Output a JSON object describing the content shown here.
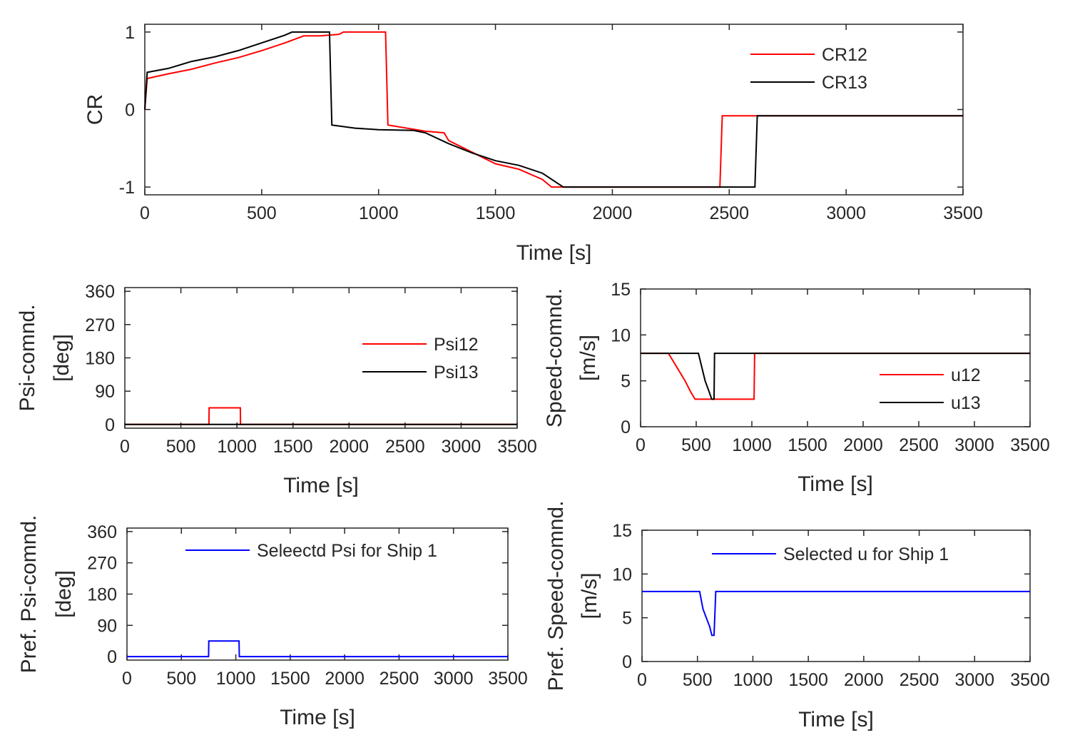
{
  "chart_data": [
    {
      "id": "cr",
      "type": "line",
      "title": "",
      "xlabel": "Time [s]",
      "ylabel": [
        "CR"
      ],
      "xlim": [
        0,
        3500
      ],
      "ylim": [
        -1.1,
        1.1
      ],
      "xticks": [
        0,
        500,
        1000,
        1500,
        2000,
        2500,
        3000,
        3500
      ],
      "yticks": [
        -1,
        0,
        1
      ],
      "series": [
        {
          "name": "CR12",
          "color": "#ff0000",
          "points": [
            [
              0,
              0
            ],
            [
              10,
              0.4
            ],
            [
              100,
              0.46
            ],
            [
              200,
              0.52
            ],
            [
              300,
              0.6
            ],
            [
              400,
              0.67
            ],
            [
              500,
              0.76
            ],
            [
              600,
              0.86
            ],
            [
              680,
              0.95
            ],
            [
              750,
              0.95
            ],
            [
              830,
              0.97
            ],
            [
              850,
              1
            ],
            [
              1030,
              1
            ],
            [
              1040,
              -0.2
            ],
            [
              1200,
              -0.28
            ],
            [
              1280,
              -0.3
            ],
            [
              1300,
              -0.4
            ],
            [
              1400,
              -0.55
            ],
            [
              1500,
              -0.7
            ],
            [
              1600,
              -0.77
            ],
            [
              1700,
              -0.9
            ],
            [
              1740,
              -1
            ],
            [
              2460,
              -1
            ],
            [
              2470,
              -0.08
            ],
            [
              3500,
              -0.08
            ]
          ]
        },
        {
          "name": "CR13",
          "color": "#000000",
          "points": [
            [
              0,
              0
            ],
            [
              10,
              0.48
            ],
            [
              100,
              0.53
            ],
            [
              200,
              0.62
            ],
            [
              300,
              0.68
            ],
            [
              400,
              0.76
            ],
            [
              500,
              0.86
            ],
            [
              600,
              0.96
            ],
            [
              630,
              1
            ],
            [
              790,
              1
            ],
            [
              800,
              -0.2
            ],
            [
              900,
              -0.24
            ],
            [
              1000,
              -0.26
            ],
            [
              1150,
              -0.27
            ],
            [
              1200,
              -0.3
            ],
            [
              1300,
              -0.44
            ],
            [
              1400,
              -0.56
            ],
            [
              1500,
              -0.66
            ],
            [
              1600,
              -0.72
            ],
            [
              1700,
              -0.82
            ],
            [
              1790,
              -1
            ],
            [
              2610,
              -1
            ],
            [
              2620,
              -0.08
            ],
            [
              3500,
              -0.08
            ]
          ]
        }
      ],
      "legend": "top-right"
    },
    {
      "id": "psi",
      "type": "line",
      "title": "",
      "xlabel": "Time [s]",
      "ylabel": [
        "Psi-comnd.",
        "[deg]"
      ],
      "xlim": [
        0,
        3500
      ],
      "ylim": [
        -10,
        370
      ],
      "xticks": [
        0,
        500,
        1000,
        1500,
        2000,
        2500,
        3000,
        3500
      ],
      "yticks": [
        0,
        90,
        180,
        270,
        360
      ],
      "series": [
        {
          "name": "Psi12",
          "color": "#ff0000",
          "points": [
            [
              0,
              0
            ],
            [
              750,
              0
            ],
            [
              752,
              45
            ],
            [
              1030,
              45
            ],
            [
              1032,
              0
            ],
            [
              3500,
              0
            ]
          ]
        },
        {
          "name": "Psi13",
          "color": "#000000",
          "points": [
            [
              0,
              0
            ],
            [
              3500,
              0
            ]
          ]
        }
      ],
      "legend": "right"
    },
    {
      "id": "speed",
      "type": "line",
      "title": "",
      "xlabel": "Time [s]",
      "ylabel": [
        "Speed-comnd.",
        "[m/s]"
      ],
      "xlim": [
        0,
        3500
      ],
      "ylim": [
        0,
        15
      ],
      "xticks": [
        0,
        500,
        1000,
        1500,
        2000,
        2500,
        3000,
        3500
      ],
      "yticks": [
        0,
        5,
        10,
        15
      ],
      "series": [
        {
          "name": "u12",
          "color": "#ff0000",
          "points": [
            [
              0,
              8
            ],
            [
              250,
              8
            ],
            [
              300,
              7
            ],
            [
              350,
              6
            ],
            [
              400,
              5
            ],
            [
              450,
              3.8
            ],
            [
              490,
              3
            ],
            [
              1020,
              3
            ],
            [
              1025,
              8
            ],
            [
              3500,
              8
            ]
          ]
        },
        {
          "name": "u13",
          "color": "#000000",
          "points": [
            [
              0,
              8
            ],
            [
              520,
              8
            ],
            [
              550,
              6.5
            ],
            [
              580,
              5
            ],
            [
              610,
              4
            ],
            [
              640,
              3
            ],
            [
              660,
              3
            ],
            [
              665,
              8
            ],
            [
              3500,
              8
            ]
          ]
        }
      ],
      "legend": "bottom-right"
    },
    {
      "id": "prefpsi",
      "type": "line",
      "title": "",
      "xlabel": "Time [s]",
      "ylabel": [
        "Pref. Psi-comnd.",
        "[deg]"
      ],
      "xlim": [
        0,
        3500
      ],
      "ylim": [
        -10,
        370
      ],
      "xticks": [
        0,
        500,
        1000,
        1500,
        2000,
        2500,
        3000,
        3500
      ],
      "yticks": [
        0,
        90,
        180,
        270,
        360
      ],
      "series": [
        {
          "name": "Seleectd Psi for Ship 1",
          "color": "#0000ff",
          "points": [
            [
              0,
              0
            ],
            [
              750,
              0
            ],
            [
              752,
              45
            ],
            [
              1030,
              45
            ],
            [
              1032,
              0
            ],
            [
              3500,
              0
            ]
          ]
        }
      ],
      "legend": "top"
    },
    {
      "id": "prefspeed",
      "type": "line",
      "title": "",
      "xlabel": "Time [s]",
      "ylabel": [
        "Pref. Speed-comnd.",
        "[m/s]"
      ],
      "xlim": [
        0,
        3500
      ],
      "ylim": [
        0,
        15
      ],
      "xticks": [
        0,
        500,
        1000,
        1500,
        2000,
        2500,
        3000,
        3500
      ],
      "yticks": [
        0,
        5,
        10,
        15
      ],
      "series": [
        {
          "name": "Selected u for Ship 1",
          "color": "#0000ff",
          "points": [
            [
              0,
              8
            ],
            [
              520,
              8
            ],
            [
              550,
              6
            ],
            [
              580,
              5
            ],
            [
              610,
              4
            ],
            [
              630,
              3
            ],
            [
              650,
              3
            ],
            [
              665,
              8
            ],
            [
              3500,
              8
            ]
          ]
        }
      ],
      "legend": "top"
    }
  ]
}
